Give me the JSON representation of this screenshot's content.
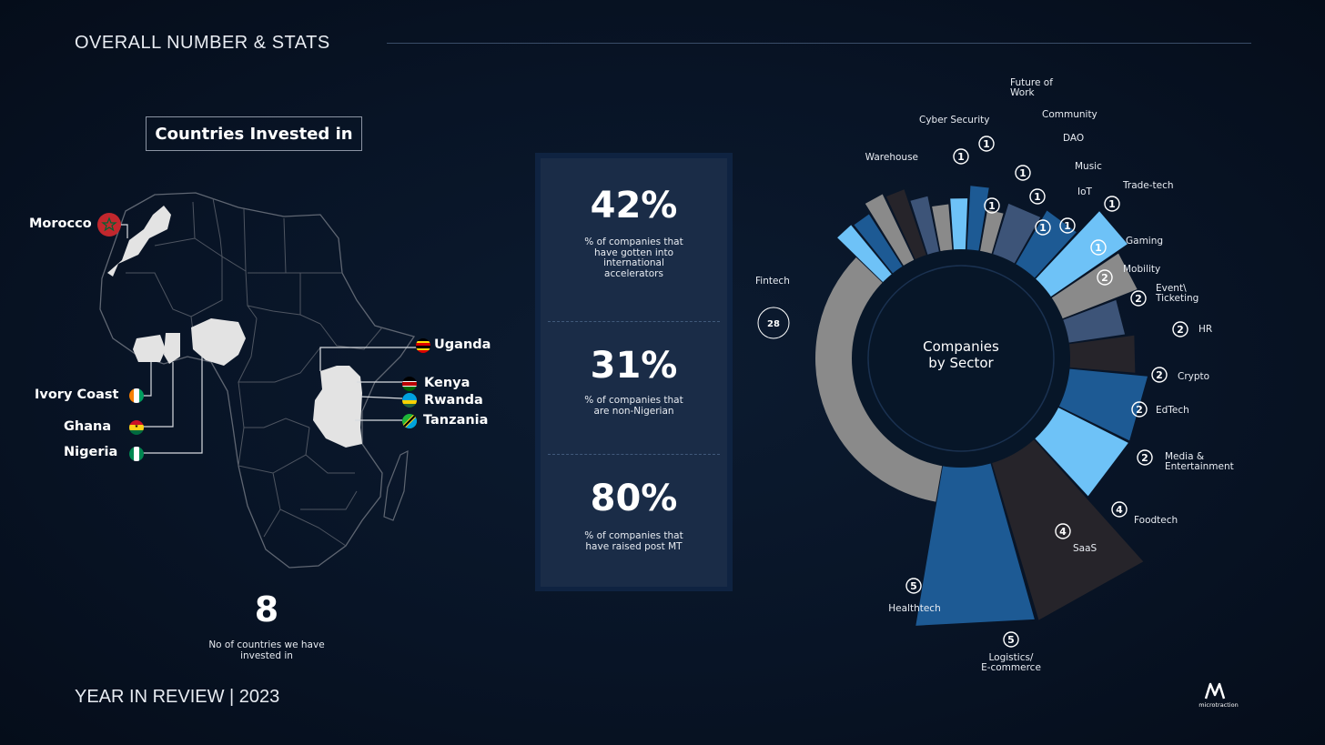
{
  "header": {
    "title": "OVERALL NUMBER & STATS"
  },
  "footer": {
    "text": "YEAR IN REVIEW | 2023"
  },
  "brand": {
    "name": "microtraction"
  },
  "countries": {
    "box_label": "Countries Invested in",
    "items": [
      {
        "name": "Morocco",
        "flag": "morocco"
      },
      {
        "name": "Ivory Coast",
        "flag": "ivory-coast"
      },
      {
        "name": "Ghana",
        "flag": "ghana"
      },
      {
        "name": "Nigeria",
        "flag": "nigeria"
      },
      {
        "name": "Uganda",
        "flag": "uganda"
      },
      {
        "name": "Kenya",
        "flag": "kenya"
      },
      {
        "name": "Rwanda",
        "flag": "rwanda"
      },
      {
        "name": "Tanzania",
        "flag": "tanzania"
      }
    ],
    "count": "8",
    "count_caption": "No of countries we have invested in"
  },
  "stats": [
    {
      "value": "42%",
      "caption": "% of companies that have gotten into international accelerators"
    },
    {
      "value": "31%",
      "caption": "% of companies that are non-Nigerian"
    },
    {
      "value": "80%",
      "caption": "% of companies that have raised post MT"
    }
  ],
  "colors": {
    "grey": "#8a8a8a",
    "dark": "#26242a",
    "blue": "#1d5a94",
    "lightblue": "#6ec2f7",
    "slate": "#3d5478",
    "center": "#071628"
  },
  "chart_data": {
    "type": "pie",
    "center_label": "Companies by Sector",
    "categories": [
      "Fintech",
      "Warehouse",
      "Cyber Security",
      "Future of Work",
      "Community",
      "DAO",
      "Music",
      "IoT",
      "Trade-tech",
      "Gaming",
      "Mobility",
      "Event\\ Ticketing",
      "HR",
      "Crypto",
      "EdTech",
      "Media & Entertainment",
      "Foodtech",
      "SaaS",
      "Logistics/ E-commerce",
      "Healthtech"
    ],
    "values": [
      28,
      1,
      1,
      1,
      1,
      1,
      1,
      1,
      1,
      1,
      2,
      2,
      2,
      2,
      2,
      2,
      4,
      4,
      5,
      5
    ],
    "colors": [
      "grey",
      "lightblue",
      "blue",
      "grey",
      "dark",
      "slate",
      "grey",
      "lightblue",
      "blue",
      "grey",
      "slate",
      "blue",
      "lightblue",
      "grey",
      "slate",
      "dark",
      "blue",
      "lightblue",
      "dark",
      "blue"
    ]
  }
}
